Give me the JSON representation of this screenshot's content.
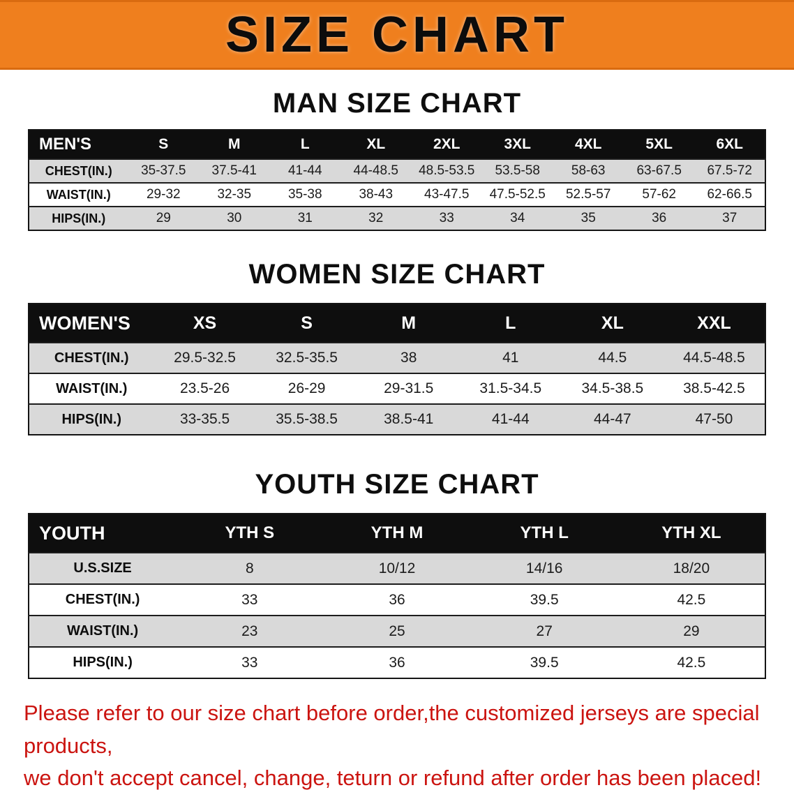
{
  "banner": {
    "title": "SIZE CHART"
  },
  "colors": {
    "banner_bg": "#ef7f1e",
    "table_header_bg": "#0e0e0e",
    "row_alt_gray": "#d9d9d9",
    "footer_red": "#cb1410"
  },
  "sections": [
    {
      "heading": "MAN SIZE CHART",
      "table_label": "MEN'S",
      "columns": [
        "S",
        "M",
        "L",
        "XL",
        "2XL",
        "3XL",
        "4XL",
        "5XL",
        "6XL"
      ],
      "rows": [
        {
          "label": "CHEST(IN.)",
          "values": [
            "35-37.5",
            "37.5-41",
            "41-44",
            "44-48.5",
            "48.5-53.5",
            "53.5-58",
            "58-63",
            "63-67.5",
            "67.5-72"
          ]
        },
        {
          "label": "WAIST(IN.)",
          "values": [
            "29-32",
            "32-35",
            "35-38",
            "38-43",
            "43-47.5",
            "47.5-52.5",
            "52.5-57",
            "57-62",
            "62-66.5"
          ]
        },
        {
          "label": "HIPS(IN.)",
          "values": [
            "29",
            "30",
            "31",
            "32",
            "33",
            "34",
            "35",
            "36",
            "37"
          ]
        }
      ]
    },
    {
      "heading": "WOMEN SIZE CHART",
      "table_label": "WOMEN'S",
      "columns": [
        "XS",
        "S",
        "M",
        "L",
        "XL",
        "XXL"
      ],
      "rows": [
        {
          "label": "CHEST(IN.)",
          "values": [
            "29.5-32.5",
            "32.5-35.5",
            "38",
            "41",
            "44.5",
            "44.5-48.5"
          ]
        },
        {
          "label": "WAIST(IN.)",
          "values": [
            "23.5-26",
            "26-29",
            "29-31.5",
            "31.5-34.5",
            "34.5-38.5",
            "38.5-42.5"
          ]
        },
        {
          "label": "HIPS(IN.)",
          "values": [
            "33-35.5",
            "35.5-38.5",
            "38.5-41",
            "41-44",
            "44-47",
            "47-50"
          ]
        }
      ]
    },
    {
      "heading": "YOUTH SIZE CHART",
      "table_label": "YOUTH",
      "columns": [
        "YTH S",
        "YTH M",
        "YTH L",
        "YTH XL"
      ],
      "rows": [
        {
          "label": "U.S.SIZE",
          "values": [
            "8",
            "10/12",
            "14/16",
            "18/20"
          ]
        },
        {
          "label": "CHEST(IN.)",
          "values": [
            "33",
            "36",
            "39.5",
            "42.5"
          ]
        },
        {
          "label": "WAIST(IN.)",
          "values": [
            "23",
            "25",
            "27",
            "29"
          ]
        },
        {
          "label": "HIPS(IN.)",
          "values": [
            "33",
            "36",
            "39.5",
            "42.5"
          ]
        }
      ]
    }
  ],
  "footer": {
    "line1": "Please refer to our size chart before order,the customized jerseys are special products,",
    "line2": "we don't accept cancel, change, teturn or refund after order has been placed!"
  }
}
